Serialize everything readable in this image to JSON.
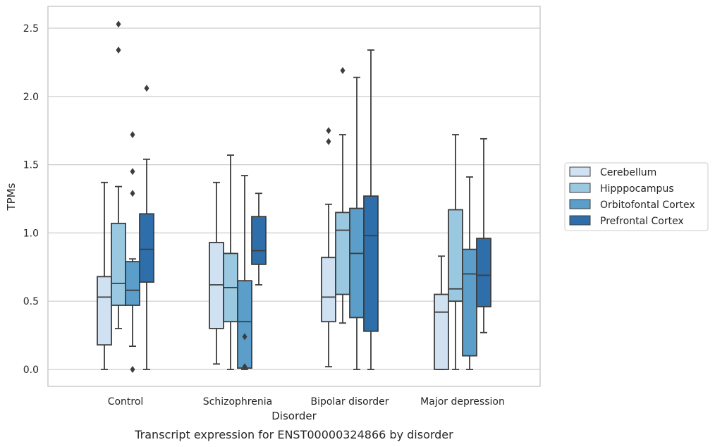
{
  "chart_data": {
    "type": "box",
    "xlabel": "Disorder",
    "ylabel": "TPMs",
    "caption": "Transcript expression for ENST00000324866 by disorder",
    "ylim": [
      -0.12,
      2.66
    ],
    "yticks": [
      "0.0",
      "0.5",
      "1.0",
      "1.5",
      "2.0",
      "2.5"
    ],
    "yticks_values": [
      0.0,
      0.5,
      1.0,
      1.5,
      2.0,
      2.5
    ],
    "grid": "horizontal",
    "legend_position": "right",
    "categories": [
      "Control",
      "Schizophrenia",
      "Bipolar disorder",
      "Major depression"
    ],
    "series": [
      {
        "name": "Cerebellum",
        "color": "#d0e1f2",
        "boxes": [
          {
            "whislo": 0.0,
            "q1": 0.18,
            "med": 0.53,
            "q3": 0.68,
            "whishi": 1.37,
            "fliers": []
          },
          {
            "whislo": 0.04,
            "q1": 0.3,
            "med": 0.62,
            "q3": 0.93,
            "whishi": 1.37,
            "fliers": []
          },
          {
            "whislo": 0.02,
            "q1": 0.35,
            "med": 0.53,
            "q3": 0.82,
            "whishi": 1.21,
            "fliers": [
              1.67,
              1.75
            ]
          },
          {
            "whislo": 0.0,
            "q1": 0.0,
            "med": 0.42,
            "q3": 0.55,
            "whishi": 0.83,
            "fliers": []
          }
        ]
      },
      {
        "name": "Hipppocampus",
        "color": "#9ac8e0",
        "boxes": [
          {
            "whislo": 0.3,
            "q1": 0.47,
            "med": 0.63,
            "q3": 1.07,
            "whishi": 1.34,
            "fliers": [
              2.34,
              2.53
            ]
          },
          {
            "whislo": 0.0,
            "q1": 0.35,
            "med": 0.6,
            "q3": 0.85,
            "whishi": 1.57,
            "fliers": []
          },
          {
            "whislo": 0.34,
            "q1": 0.55,
            "med": 1.02,
            "q3": 1.15,
            "whishi": 1.72,
            "fliers": [
              2.19
            ]
          },
          {
            "whislo": 0.0,
            "q1": 0.5,
            "med": 0.59,
            "q3": 1.17,
            "whishi": 1.72,
            "fliers": []
          }
        ]
      },
      {
        "name": "Orbitofontal Cortex",
        "color": "#5a9ec9",
        "boxes": [
          {
            "whislo": 0.17,
            "q1": 0.47,
            "med": 0.58,
            "q3": 0.79,
            "whishi": 0.81,
            "fliers": [
              1.29,
              1.45,
              1.72,
              0.0
            ]
          },
          {
            "whislo": 0.0,
            "q1": 0.01,
            "med": 0.35,
            "q3": 0.65,
            "whishi": 1.42,
            "fliers": [
              0.02,
              0.24
            ]
          },
          {
            "whislo": 0.0,
            "q1": 0.38,
            "med": 0.85,
            "q3": 1.18,
            "whishi": 2.14,
            "fliers": []
          },
          {
            "whislo": 0.0,
            "q1": 0.1,
            "med": 0.7,
            "q3": 0.88,
            "whishi": 1.41,
            "fliers": []
          }
        ]
      },
      {
        "name": "Prefrontal Cortex",
        "color": "#2e6fab",
        "boxes": [
          {
            "whislo": 0.0,
            "q1": 0.64,
            "med": 0.88,
            "q3": 1.14,
            "whishi": 1.54,
            "fliers": [
              2.06
            ]
          },
          {
            "whislo": 0.62,
            "q1": 0.77,
            "med": 0.87,
            "q3": 1.12,
            "whishi": 1.29,
            "fliers": []
          },
          {
            "whislo": 0.0,
            "q1": 0.28,
            "med": 0.98,
            "q3": 1.27,
            "whishi": 2.34,
            "fliers": []
          },
          {
            "whislo": 0.27,
            "q1": 0.46,
            "med": 0.69,
            "q3": 0.96,
            "whishi": 1.69,
            "fliers": []
          }
        ]
      }
    ]
  }
}
